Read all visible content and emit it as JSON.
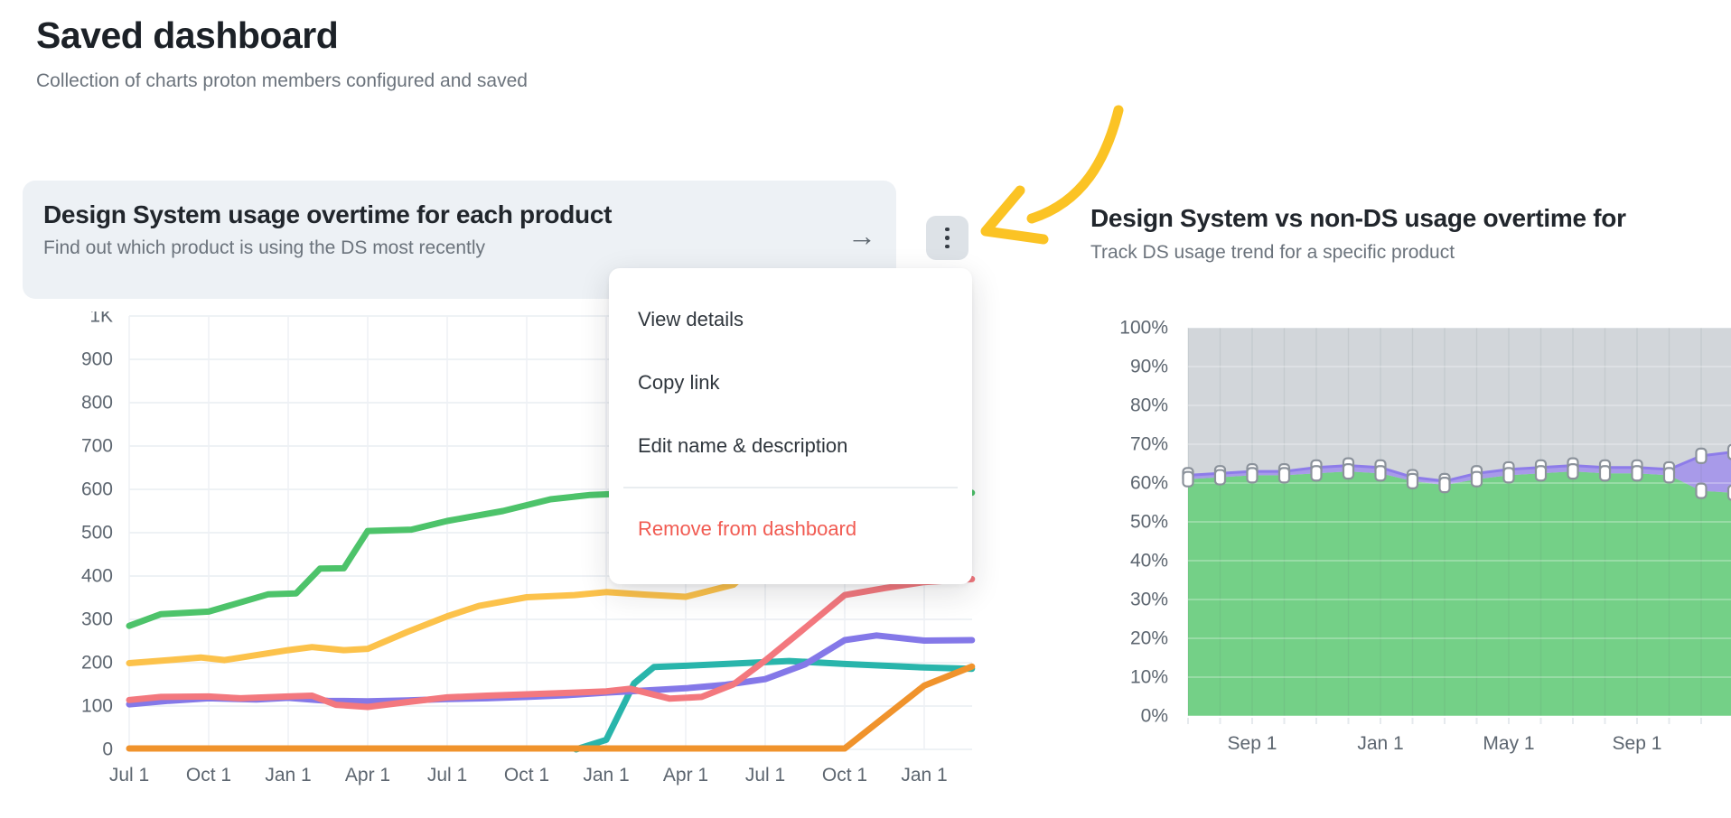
{
  "page": {
    "title": "Saved dashboard",
    "subtitle": "Collection of charts proton members configured and saved"
  },
  "left_panel": {
    "title": "Design System usage overtime for each product",
    "subtitle": "Find out which product is using the DS most recently",
    "goto_arrow_icon": "→"
  },
  "right_panel": {
    "title": "Design System vs non-DS usage overtime for",
    "subtitle": "Track DS usage trend for a specific product"
  },
  "menu": {
    "items": [
      "View details",
      "Copy link",
      "Edit name & description"
    ],
    "danger_item": "Remove from dashboard"
  },
  "annotation": {
    "color": "#fbc324"
  },
  "colors": {
    "axis_text": "#5d6670",
    "grid": "#e9edf2",
    "accent_yellow": "#fbc324",
    "danger_red": "#f15b52"
  },
  "chart_data": [
    {
      "type": "line",
      "title": "Design System usage overtime for each product",
      "x_tick_labels": [
        "Jul 1",
        "Oct 1",
        "Jan 1",
        "Apr 1",
        "Jul 1",
        "Oct 1",
        "Jan 1",
        "Apr 1",
        "Jul 1",
        "Oct 1",
        "Jan 1"
      ],
      "y_tick_labels": [
        "1K",
        "900",
        "800",
        "700",
        "600",
        "500",
        "400",
        "300",
        "200",
        "100",
        "0"
      ],
      "ylim": [
        0,
        1000
      ],
      "x_domain_quarters": [
        0,
        10.6
      ],
      "grid": true,
      "legend": "none",
      "series": [
        {
          "name": "green",
          "color": "#4dc36a",
          "points": [
            [
              0,
              285
            ],
            [
              0.4,
              312
            ],
            [
              1,
              318
            ],
            [
              1.75,
              358
            ],
            [
              2.1,
              360
            ],
            [
              2.4,
              417
            ],
            [
              2.7,
              418
            ],
            [
              3,
              504
            ],
            [
              3.55,
              507
            ],
            [
              4,
              527
            ],
            [
              4.7,
              550
            ],
            [
              5.3,
              577
            ],
            [
              5.8,
              587
            ],
            [
              6.2,
              590
            ],
            [
              10.6,
              592
            ]
          ]
        },
        {
          "name": "yellow",
          "color": "#fcc24b",
          "points": [
            [
              0,
              199
            ],
            [
              0.5,
              206
            ],
            [
              0.9,
              212
            ],
            [
              1.2,
              206
            ],
            [
              2,
              229
            ],
            [
              2.3,
              236
            ],
            [
              2.7,
              229
            ],
            [
              3,
              232
            ],
            [
              3.5,
              271
            ],
            [
              4,
              307
            ],
            [
              4.4,
              331
            ],
            [
              5,
              351
            ],
            [
              5.6,
              356
            ],
            [
              6,
              363
            ],
            [
              6.5,
              357
            ],
            [
              7,
              352
            ],
            [
              7.6,
              380
            ],
            [
              8,
              445
            ],
            [
              9,
              745
            ],
            [
              10,
              1010
            ],
            [
              10.6,
              1070
            ]
          ]
        },
        {
          "name": "teal",
          "color": "#29b5ab",
          "points": [
            [
              5.62,
              0
            ],
            [
              6,
              22
            ],
            [
              6.35,
              152
            ],
            [
              6.6,
              190
            ],
            [
              7,
              193
            ],
            [
              7.5,
              197
            ],
            [
              8.3,
              204
            ],
            [
              9,
              197
            ],
            [
              10,
              189
            ],
            [
              10.6,
              186
            ]
          ]
        },
        {
          "name": "purple",
          "color": "#8478e8",
          "points": [
            [
              0,
              104
            ],
            [
              0.5,
              112
            ],
            [
              1,
              118
            ],
            [
              1.6,
              115
            ],
            [
              2,
              119
            ],
            [
              2.5,
              112
            ],
            [
              3,
              111
            ],
            [
              3.5,
              113
            ],
            [
              4,
              116
            ],
            [
              4.5,
              118
            ],
            [
              5,
              121
            ],
            [
              5.5,
              125
            ],
            [
              6,
              131
            ],
            [
              6.5,
              136
            ],
            [
              7,
              141
            ],
            [
              7.5,
              149
            ],
            [
              8,
              162
            ],
            [
              8.5,
              196
            ],
            [
              9,
              252
            ],
            [
              9.4,
              263
            ],
            [
              10,
              251
            ],
            [
              10.6,
              252
            ]
          ]
        },
        {
          "name": "red",
          "color": "#f3787e",
          "points": [
            [
              0,
              114
            ],
            [
              0.4,
              121
            ],
            [
              1,
              122
            ],
            [
              1.4,
              118
            ],
            [
              2,
              122
            ],
            [
              2.3,
              124
            ],
            [
              2.6,
              103
            ],
            [
              3,
              98
            ],
            [
              3.4,
              107
            ],
            [
              4,
              120
            ],
            [
              4.5,
              124
            ],
            [
              5,
              127
            ],
            [
              5.6,
              131
            ],
            [
              6,
              134
            ],
            [
              6.3,
              140
            ],
            [
              6.8,
              117
            ],
            [
              7.2,
              121
            ],
            [
              7.6,
              150
            ],
            [
              8,
              205
            ],
            [
              8.5,
              280
            ],
            [
              9,
              356
            ],
            [
              9.5,
              372
            ],
            [
              10,
              386
            ],
            [
              10.6,
              393
            ]
          ]
        },
        {
          "name": "orange",
          "color": "#f0932c",
          "points": [
            [
              0,
              2
            ],
            [
              9,
              2
            ],
            [
              10,
              147
            ],
            [
              10.6,
              191
            ]
          ]
        }
      ]
    },
    {
      "type": "area",
      "title": "Design System vs non-DS usage overtime for",
      "x_tick_labels": [
        "Sep 1",
        "Jan 1",
        "May 1",
        "Sep 1"
      ],
      "x_tick_month_indices": [
        2,
        6,
        10,
        14
      ],
      "y_tick_labels": [
        "100%",
        "90%",
        "80%",
        "70%",
        "60%",
        "50%",
        "40%",
        "30%",
        "20%",
        "10%",
        "0%"
      ],
      "ylim": [
        0,
        100
      ],
      "n_points": 18,
      "grid": true,
      "legend": "none",
      "stacked_percent": true,
      "series": [
        {
          "name": "ds-usage-green",
          "fill": "#74d087",
          "values": [
            61,
            61.5,
            62,
            62,
            62.5,
            63,
            62.5,
            60.5,
            59.5,
            61,
            62,
            62.5,
            63,
            62.5,
            62.5,
            62,
            58,
            57.5
          ]
        },
        {
          "name": "overlap-purple",
          "fill": "#a89ae9",
          "line": "#8d7ce9",
          "values": [
            62,
            62.5,
            63,
            63,
            64,
            64.5,
            64,
            61.5,
            60.5,
            62.5,
            63.5,
            64,
            64.5,
            64,
            64,
            63.5,
            67,
            68
          ]
        },
        {
          "name": "non-ds-gray",
          "fill": "#d2d6da",
          "values_note": "remainder to 100%"
        }
      ],
      "marker": {
        "fill": "#ffffff",
        "border": "#8b929b"
      }
    }
  ]
}
